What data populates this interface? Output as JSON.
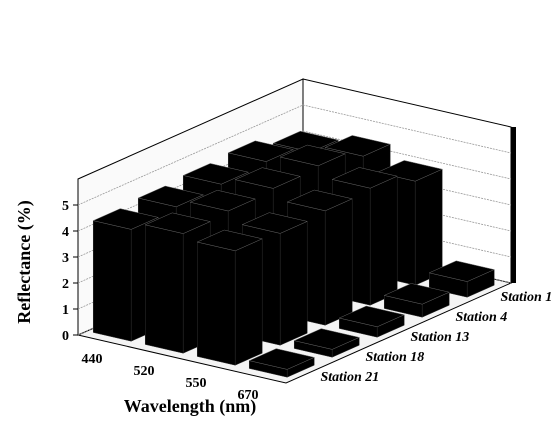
{
  "chart_data": {
    "type": "bar3d",
    "x_label": "Wavelength (nm)",
    "y_label": "Reflectance (%)",
    "categories": [
      "440",
      "520",
      "550",
      "670"
    ],
    "series": [
      {
        "name": "Station 1",
        "color": "#000000",
        "values": [
          4.2,
          4.5,
          4.0,
          0.6
        ]
      },
      {
        "name": "Station 4",
        "color": "#000000",
        "values": [
          4.6,
          4.9,
          4.5,
          0.5
        ]
      },
      {
        "name": "Station 13",
        "color": "#000000",
        "values": [
          4.5,
          4.8,
          4.4,
          0.4
        ]
      },
      {
        "name": "Station 18",
        "color": "#000000",
        "values": [
          4.4,
          4.7,
          4.3,
          0.3
        ]
      },
      {
        "name": "Station 21",
        "color": "#000000",
        "values": [
          4.3,
          4.6,
          4.4,
          0.3
        ]
      }
    ],
    "ylim": [
      0,
      6
    ],
    "yticks": [
      0,
      1,
      2,
      3,
      4,
      5
    ],
    "grid": true
  }
}
